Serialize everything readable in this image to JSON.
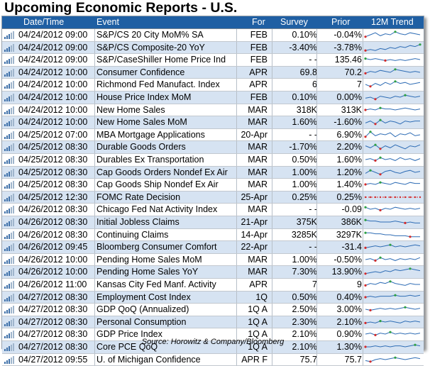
{
  "title": "Upcoming Economic Reports - U.S.",
  "columns": {
    "date_time": "Date/Time",
    "event": "Event",
    "for": "For",
    "survey": "Survey",
    "prior": "Prior",
    "trend": "12M Trend"
  },
  "rows": [
    {
      "date": "04/24/2012 09:00",
      "event": "S&P/CS 20 City MoM% SA",
      "for": "FEB",
      "survey": "0.10%",
      "prior": "-0.04%"
    },
    {
      "date": "04/24/2012 09:00",
      "event": "S&P/CS Composite-20 YoY",
      "for": "FEB",
      "survey": "-3.40%",
      "prior": "-3.78%"
    },
    {
      "date": "04/24/2012 09:00",
      "event": "S&P/CaseShiller Home Price Ind",
      "for": "FEB",
      "survey": "- -",
      "prior": "135.46"
    },
    {
      "date": "04/24/2012 10:00",
      "event": "Consumer Confidence",
      "for": "APR",
      "survey": "69.8",
      "prior": "70.2"
    },
    {
      "date": "04/24/2012 10:00",
      "event": "Richmond Fed Manufact. Index",
      "for": "APR",
      "survey": "6",
      "prior": "7"
    },
    {
      "date": "04/24/2012 10:00",
      "event": "House Price Index MoM",
      "for": "FEB",
      "survey": "0.10%",
      "prior": "0.00%"
    },
    {
      "date": "04/24/2012 10:00",
      "event": "New Home Sales",
      "for": "MAR",
      "survey": "318K",
      "prior": "313K"
    },
    {
      "date": "04/24/2012 10:00",
      "event": "New Home Sales MoM",
      "for": "MAR",
      "survey": "1.60%",
      "prior": "-1.60%"
    },
    {
      "date": "04/25/2012 07:00",
      "event": "MBA Mortgage Applications",
      "for": "20-Apr",
      "survey": "- -",
      "prior": "6.90%"
    },
    {
      "date": "04/25/2012 08:30",
      "event": "Durable Goods Orders",
      "for": "MAR",
      "survey": "-1.70%",
      "prior": "2.20%"
    },
    {
      "date": "04/25/2012 08:30",
      "event": "Durables Ex Transportation",
      "for": "MAR",
      "survey": "0.50%",
      "prior": "1.60%"
    },
    {
      "date": "04/25/2012 08:30",
      "event": "Cap Goods Orders Nondef Ex Air",
      "for": "MAR",
      "survey": "1.00%",
      "prior": "1.20%"
    },
    {
      "date": "04/25/2012 08:30",
      "event": "Cap Goods Ship Nondef Ex Air",
      "for": "MAR",
      "survey": "1.00%",
      "prior": "1.40%"
    },
    {
      "date": "04/25/2012 12:30",
      "event": "FOMC Rate Decision",
      "for": "25-Apr",
      "survey": "0.25%",
      "prior": "0.25%"
    },
    {
      "date": "04/26/2012 08:30",
      "event": "Chicago Fed Nat Activity Index",
      "for": "MAR",
      "survey": "- -",
      "prior": "-0.09"
    },
    {
      "date": "04/26/2012 08:30",
      "event": "Initial Jobless Claims",
      "for": "21-Apr",
      "survey": "375K",
      "prior": "386K"
    },
    {
      "date": "04/26/2012 08:30",
      "event": "Continuing Claims",
      "for": "14-Apr",
      "survey": "3285K",
      "prior": "3297K"
    },
    {
      "date": "04/26/2012 09:45",
      "event": "Bloomberg Consumer Comfort",
      "for": "22-Apr",
      "survey": "- -",
      "prior": "-31.4"
    },
    {
      "date": "04/26/2012 10:00",
      "event": "Pending Home Sales MoM",
      "for": "MAR",
      "survey": "1.00%",
      "prior": "-0.50%"
    },
    {
      "date": "04/26/2012 10:00",
      "event": "Pending Home Sales YoY",
      "for": "MAR",
      "survey": "7.30%",
      "prior": "13.90%"
    },
    {
      "date": "04/26/2012 11:00",
      "event": "Kansas City Fed Manf. Activity",
      "for": "APR",
      "survey": "7",
      "prior": "9"
    },
    {
      "date": "04/27/2012 08:30",
      "event": "Employment Cost Index",
      "for": "1Q",
      "survey": "0.50%",
      "prior": "0.40%"
    },
    {
      "date": "04/27/2012 08:30",
      "event": "GDP QoQ (Annualized)",
      "for": "1Q A",
      "survey": "2.50%",
      "prior": "3.00%"
    },
    {
      "date": "04/27/2012 08:30",
      "event": "Personal Consumption",
      "for": "1Q A",
      "survey": "2.30%",
      "prior": "2.10%"
    },
    {
      "date": "04/27/2012 08:30",
      "event": "GDP Price Index",
      "for": "1Q A",
      "survey": "2.10%",
      "prior": "0.90%"
    },
    {
      "date": "04/27/2012 08:30",
      "event": "Core PCE QoQ",
      "for": "1Q A",
      "survey": "2.10%",
      "prior": "1.30%"
    },
    {
      "date": "04/27/2012 09:55",
      "event": "U. of Michigan Confidence",
      "for": "APR F",
      "survey": "75.7",
      "prior": "75.7"
    }
  ],
  "footer": "Source: Horowitz & Company/Bloomberg",
  "colors": {
    "header_bg": "#1f5fa3",
    "row_alt": "#d6e3f2",
    "spark_line": "#2f6db5",
    "spark_high": "#2ea043",
    "spark_low": "#d42a2a"
  },
  "icons": {
    "row_icon": "signal-bars-icon"
  }
}
